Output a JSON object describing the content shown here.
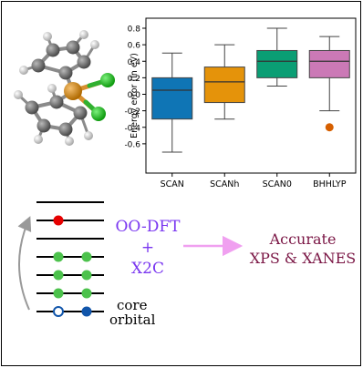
{
  "chart_data": {
    "type": "box",
    "ylabel": "Energy error (in eV)",
    "ylim": [
      -0.8,
      0.8
    ],
    "yticks": [
      "-0.6",
      "-0.4",
      "-0.2",
      "0.0",
      "0.2",
      "0.4",
      "0.6",
      "0.8"
    ],
    "ytick_values": [
      -0.6,
      -0.4,
      -0.2,
      0.0,
      0.2,
      0.4,
      0.6,
      0.8
    ],
    "categories": [
      "SCAN",
      "SCANh",
      "SCAN0",
      "BHHLYP"
    ],
    "boxes": [
      {
        "whisker_low": -0.7,
        "q1": -0.3,
        "median": 0.05,
        "q3": 0.2,
        "whisker_high": 0.5,
        "outliers": [],
        "color": "#0f75b5"
      },
      {
        "whisker_low": -0.3,
        "q1": -0.1,
        "median": 0.15,
        "q3": 0.33,
        "whisker_high": 0.6,
        "outliers": [],
        "color": "#e5930a"
      },
      {
        "whisker_low": 0.1,
        "q1": 0.2,
        "median": 0.4,
        "q3": 0.53,
        "whisker_high": 0.8,
        "outliers": [],
        "color": "#0a9e74"
      },
      {
        "whisker_low": -0.2,
        "q1": 0.2,
        "median": 0.4,
        "q3": 0.53,
        "whisker_high": 0.7,
        "outliers": [
          -0.4
        ],
        "color": "#cb79b6",
        "outlier_color": "#d65f00"
      }
    ],
    "grid": false
  },
  "method": {
    "line1": "OO-DFT",
    "plus": "+",
    "line2": "X2C",
    "color": "#7a37f0"
  },
  "result": {
    "line1": "Accurate",
    "line2": "XPS & XANES",
    "color": "#7a1544",
    "arrow_color": "#f0a0f0"
  },
  "orbital_diagram": {
    "core_label_1": "core",
    "core_label_2": "orbital",
    "colors": {
      "red": "#e60000",
      "green": "#4cc24c",
      "blue": "#1155aa"
    }
  },
  "molecule": {
    "atoms": {
      "metal": "#e6901a",
      "chlorine": "#22c022",
      "carbon": "#6e6e6e",
      "hydrogen": "#dcdcdc"
    }
  }
}
